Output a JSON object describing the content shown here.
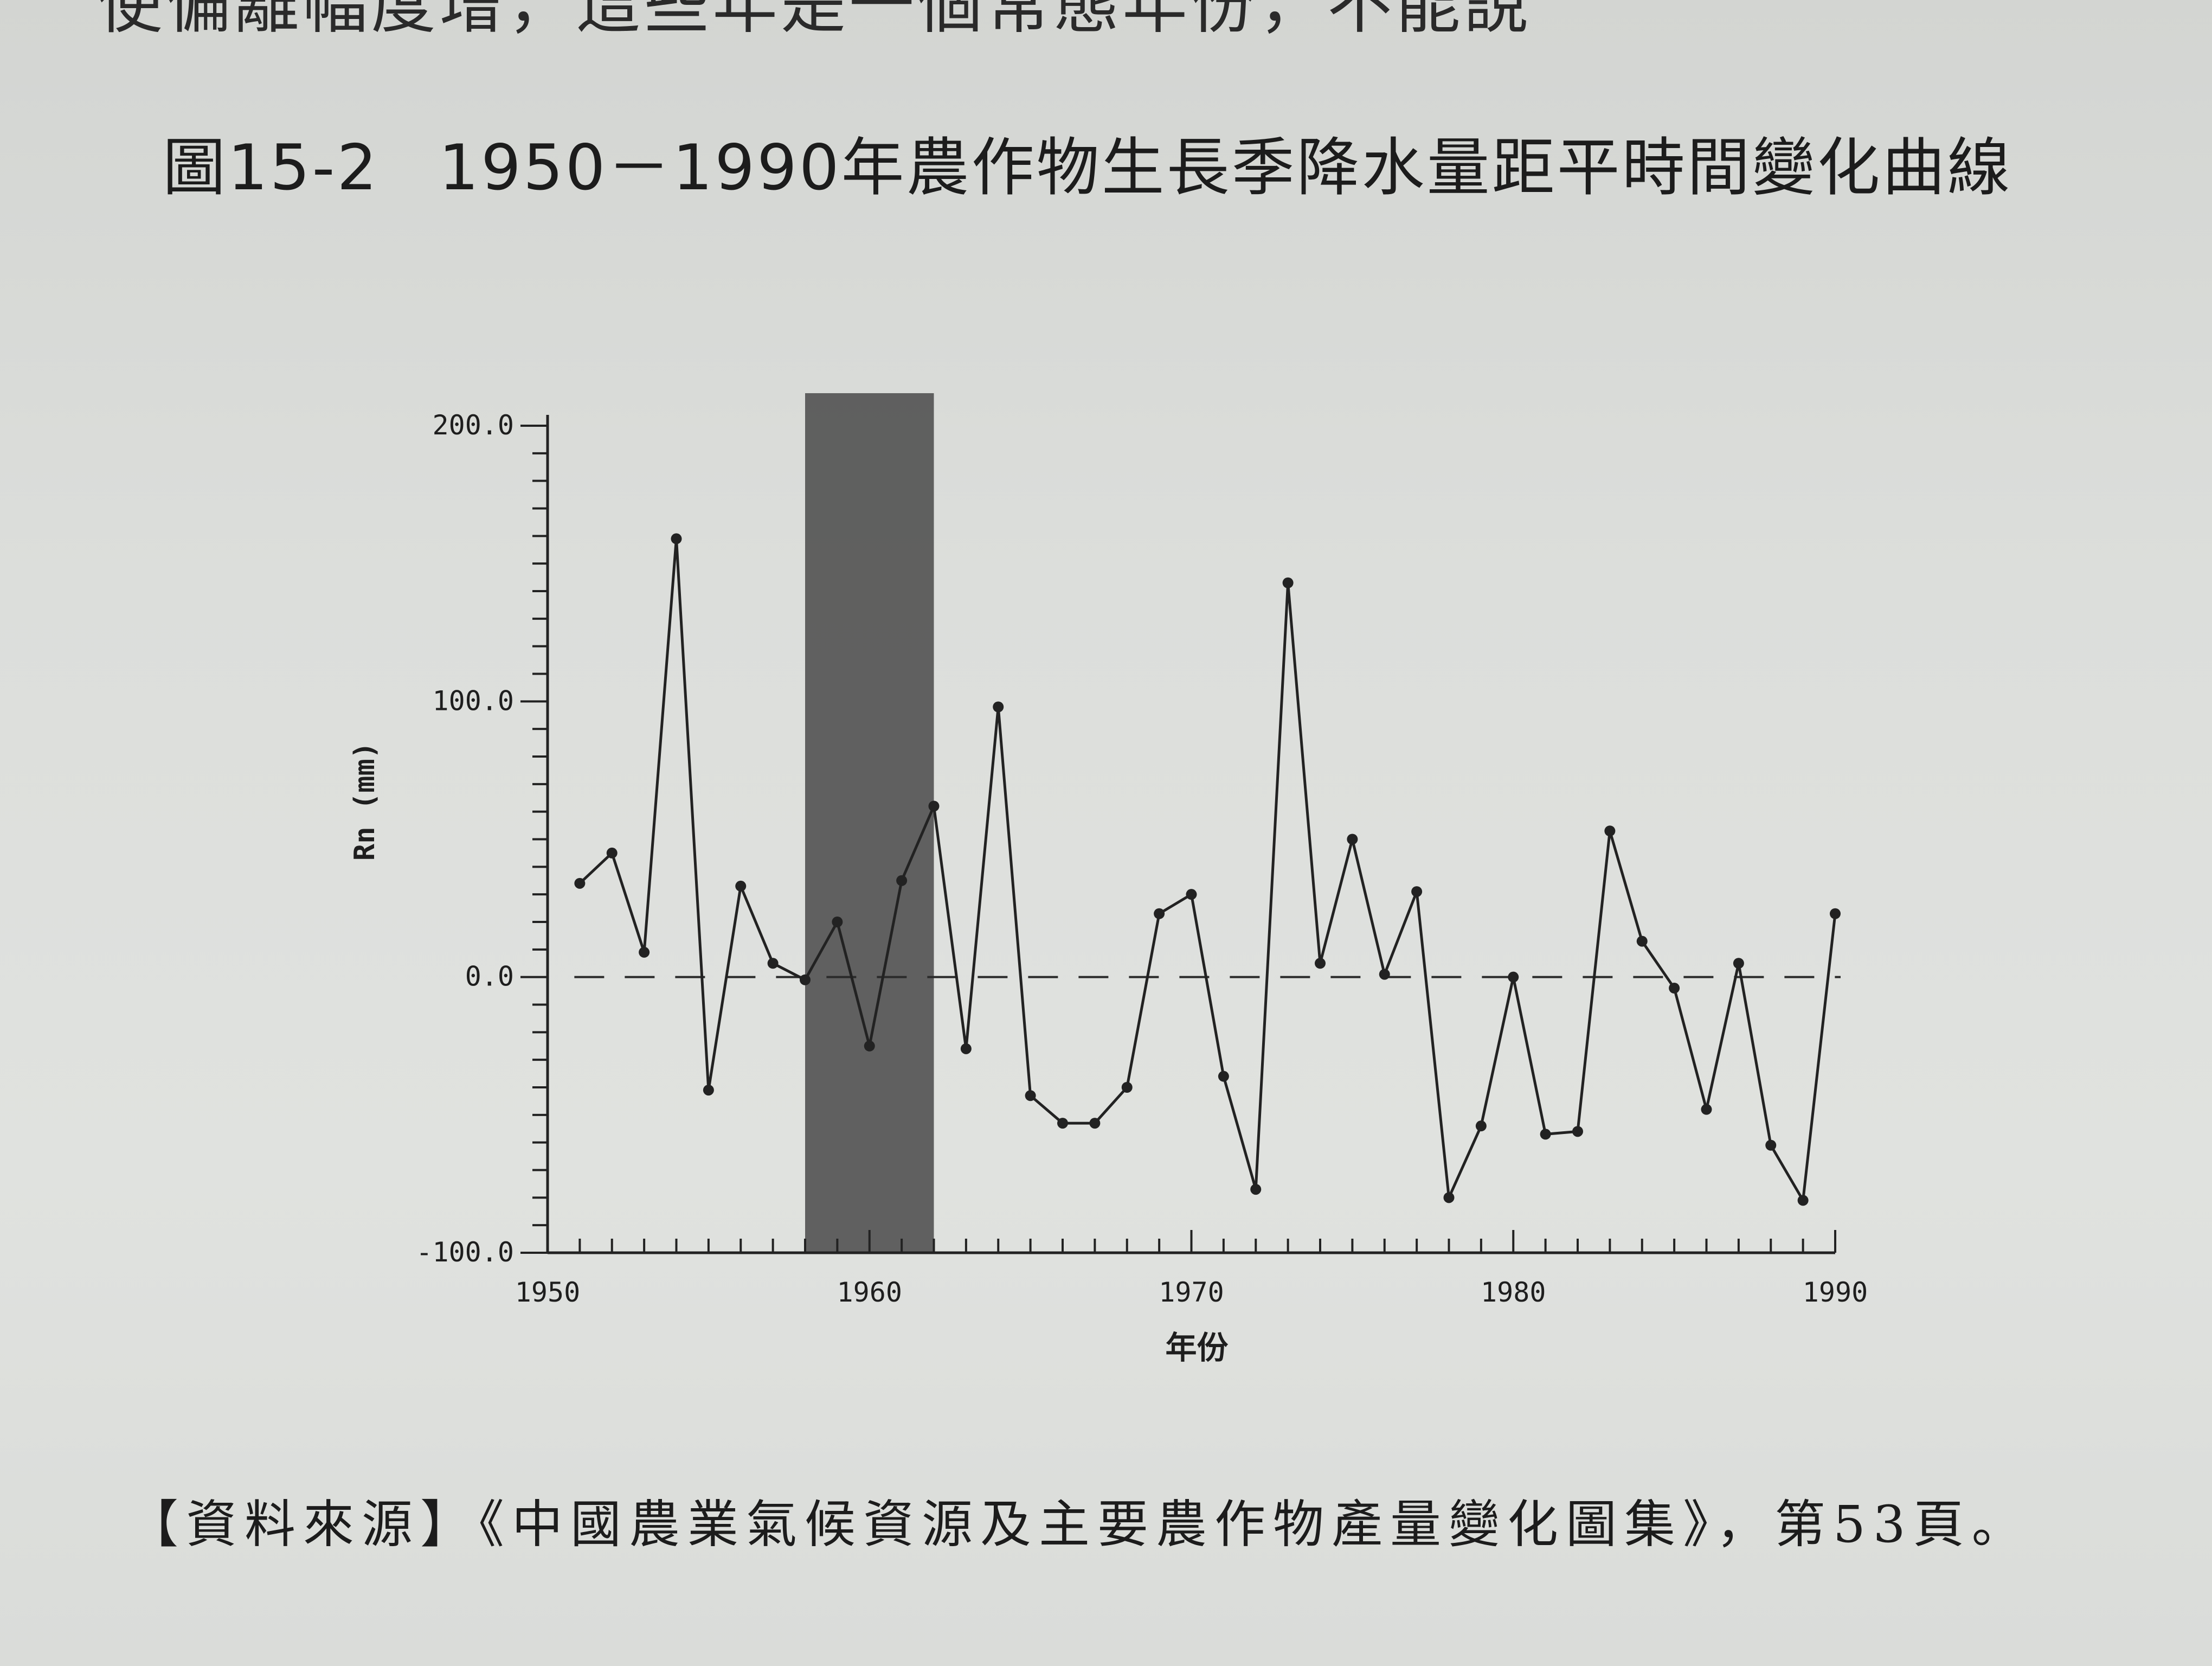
{
  "page": {
    "top_cut_text": "使偏離幅度增，這些年是一個常態年份，不能說",
    "figure_title": "圖15-2",
    "figure_title_rest": "1950－1990年農作物生長季降水量距平時間變化曲線",
    "source_text": "【資料來源】《中國農業氣候資源及主要農作物產量變化圖集》，第53頁。"
  },
  "chart_data": {
    "type": "line",
    "title": "",
    "xlabel": "年份",
    "ylabel": "Rn (mm)",
    "xlim": [
      1950,
      1990
    ],
    "ylim": [
      -100,
      200
    ],
    "x_ticks": [
      "1950",
      "1960",
      "1970",
      "1980",
      "1990"
    ],
    "y_ticks": [
      "200.0",
      "100.0",
      "0.0",
      "-100.0"
    ],
    "baseline": 0,
    "baseline_style": "dashed",
    "shaded_span": [
      1958,
      1962
    ],
    "shaded_color": "#555555",
    "line_color": "#222222",
    "series": [
      {
        "x": [
          1951,
          1952,
          1953,
          1954,
          1955,
          1956,
          1957,
          1958,
          1959,
          1960,
          1961,
          1962,
          1963,
          1964,
          1965,
          1966,
          1967,
          1968,
          1969,
          1970,
          1971,
          1972,
          1973,
          1974,
          1975,
          1976,
          1977,
          1978,
          1979,
          1980,
          1981,
          1982,
          1983,
          1984,
          1985,
          1986,
          1987,
          1988,
          1989,
          1990
        ],
        "values": [
          34,
          45,
          9,
          159,
          -41,
          33,
          5,
          -1,
          20,
          -25,
          35,
          62,
          -26,
          98,
          -43,
          -53,
          -53,
          -40,
          23,
          30,
          -36,
          -77,
          143,
          5,
          50,
          1,
          31,
          -80,
          -54,
          0,
          -57,
          -56,
          53,
          13,
          -4,
          -48,
          5,
          -61,
          -81,
          23
        ]
      }
    ]
  }
}
